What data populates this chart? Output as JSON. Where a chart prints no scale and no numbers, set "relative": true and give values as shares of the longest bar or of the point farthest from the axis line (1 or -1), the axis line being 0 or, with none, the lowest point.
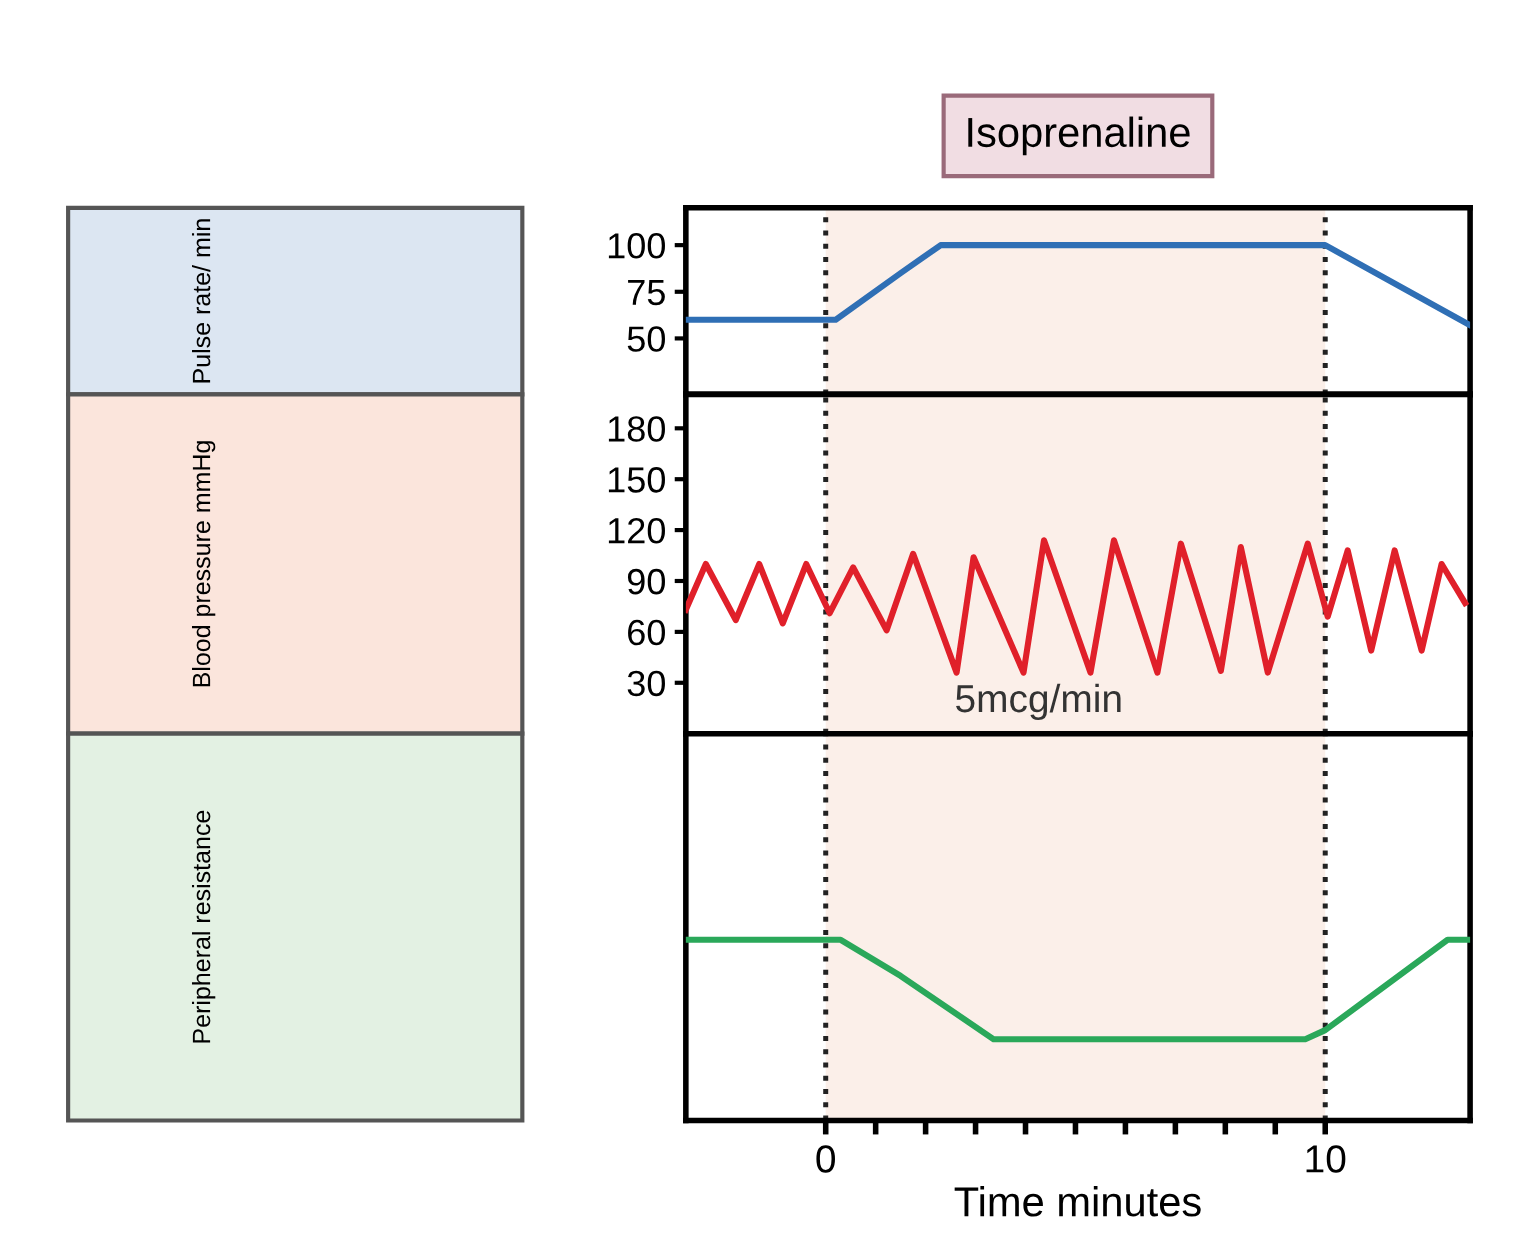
{
  "chart_data": [
    {
      "type": "line",
      "title": "Isoprenaline",
      "ylabel": "Pulse rate/ min",
      "xlim": [
        -2.8,
        12.9
      ],
      "ylim": [
        20,
        120
      ],
      "yticks": [
        50,
        75,
        100
      ],
      "tick_labels": "y",
      "series": [
        {
          "color": "#2f6fb5",
          "x": [
            -2.8,
            0.2,
            1.5,
            2.3,
            10,
            12.9
          ],
          "values": [
            60,
            60,
            85,
            100,
            100,
            57
          ]
        }
      ],
      "ref_lines": [
        {
          "axis": "x",
          "value": 0,
          "line_style": "dotted",
          "color": "#222222"
        },
        {
          "axis": "x",
          "value": 10,
          "line_style": "dotted",
          "color": "#222222"
        }
      ],
      "bands": [
        {
          "axis": "x",
          "from": 0,
          "to": 10,
          "color": "#fbefe9"
        }
      ]
    },
    {
      "type": "line",
      "ylabel": "Blood pressure mmHg",
      "xlim": [
        -2.8,
        12.9
      ],
      "ylim": [
        0,
        200
      ],
      "yticks": [
        30,
        60,
        90,
        120,
        150,
        180
      ],
      "tick_labels": "y",
      "annotations": [
        "5mcg/min"
      ],
      "series": [
        {
          "color": "#e0202a",
          "x": [
            -2.8,
            -2.4,
            -1.8,
            -1.33,
            -0.86,
            -0.39,
            0.08,
            0.55,
            1.22,
            1.75,
            2.62,
            2.96,
            3.96,
            4.37,
            5.3,
            5.77,
            6.64,
            7.11,
            7.91,
            8.31,
            8.85,
            9.65,
            10.05,
            10.45,
            10.92,
            11.39,
            11.93,
            12.33,
            12.8
          ],
          "values": [
            73,
            100,
            67,
            100,
            65,
            100,
            71,
            98,
            61,
            106,
            36,
            104,
            36,
            114,
            36,
            114,
            36,
            112,
            37,
            110,
            36,
            112,
            69,
            108,
            49,
            108,
            49,
            100,
            77
          ]
        }
      ],
      "ref_lines": [
        {
          "axis": "x",
          "value": 0,
          "line_style": "dotted",
          "color": "#222222"
        },
        {
          "axis": "x",
          "value": 10,
          "line_style": "dotted",
          "color": "#222222"
        }
      ],
      "bands": [
        {
          "axis": "x",
          "from": 0,
          "to": 10,
          "color": "#fbefe9"
        }
      ]
    },
    {
      "type": "line",
      "ylabel": "Peripheral resistance",
      "xlabel": "Time minutes",
      "relative": true,
      "xlim": [
        -2.8,
        12.9
      ],
      "xticks": [
        0,
        {
          "value": 1,
          "label": null
        },
        {
          "value": 2,
          "label": null
        },
        {
          "value": 3,
          "label": null
        },
        {
          "value": 4,
          "label": null
        },
        {
          "value": 5,
          "label": null
        },
        {
          "value": 6,
          "label": null
        },
        {
          "value": 7,
          "label": null
        },
        {
          "value": 8,
          "label": null
        },
        {
          "value": 9,
          "label": null
        },
        10
      ],
      "tick_labels": "x",
      "series": [
        {
          "color": "#2aa85a",
          "x": [
            -2.8,
            0.3,
            1.5,
            3.36,
            9.6,
            10,
            12.45,
            12.9
          ],
          "values": [
            1,
            1,
            0.8,
            0.45,
            0.45,
            0.5,
            1,
            1
          ]
        }
      ],
      "ref_lines": [
        {
          "axis": "x",
          "value": 0,
          "line_style": "dotted",
          "color": "#222222"
        },
        {
          "axis": "x",
          "value": 10,
          "line_style": "dotted",
          "color": "#222222"
        }
      ],
      "bands": [
        {
          "axis": "x",
          "from": 0,
          "to": 10,
          "color": "#fbefe9"
        }
      ]
    }
  ]
}
